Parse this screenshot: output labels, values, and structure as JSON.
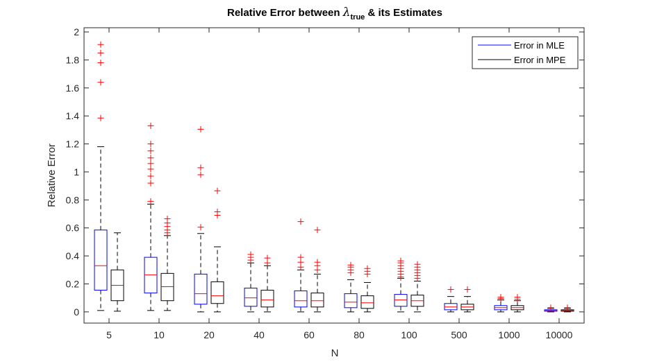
{
  "chart_data": {
    "type": "boxplot",
    "title": {
      "prefix": "Relative Error between ",
      "symbol": "λ",
      "subscript": "true",
      "suffix": " & its Estimates"
    },
    "xlabel": "N",
    "ylabel": "Relative Error",
    "ylim": [
      -0.08,
      2.03
    ],
    "yticks": [
      0,
      0.2,
      0.4,
      0.6,
      0.8,
      1,
      1.2,
      1.4,
      1.6,
      1.8,
      2
    ],
    "ytick_labels": [
      "0",
      "0.2",
      "0.4",
      "0.6",
      "0.8",
      "1",
      "1.2",
      "1.4",
      "1.6",
      "1.8",
      "2"
    ],
    "categories": [
      "5",
      "10",
      "20",
      "40",
      "60",
      "80",
      "100",
      "500",
      "1000",
      "10000"
    ],
    "legend": {
      "position": "top-right"
    },
    "median_color": "#ff0000",
    "outlier_color": "#ff0000",
    "series": [
      {
        "name": "Error in MLE",
        "color": "#0000ff",
        "boxes": [
          {
            "whisker_low": 0.01,
            "q1": 0.155,
            "median": 0.33,
            "q3": 0.585,
            "whisker_high": 1.18,
            "outliers": [
              1.385,
              1.64,
              1.78,
              1.85,
              1.91
            ]
          },
          {
            "whisker_low": 0.01,
            "q1": 0.135,
            "median": 0.265,
            "q3": 0.39,
            "whisker_high": 0.77,
            "outliers": [
              0.79,
              0.92,
              0.97,
              1.02,
              1.06,
              1.1,
              1.15,
              1.2,
              1.33
            ]
          },
          {
            "whisker_low": 0.0,
            "q1": 0.055,
            "median": 0.13,
            "q3": 0.27,
            "whisker_high": 0.56,
            "outliers": [
              0.605,
              0.98,
              1.03,
              1.305
            ]
          },
          {
            "whisker_low": 0.0,
            "q1": 0.04,
            "median": 0.1,
            "q3": 0.17,
            "whisker_high": 0.35,
            "outliers": [
              0.37,
              0.39,
              0.41
            ]
          },
          {
            "whisker_low": 0.0,
            "q1": 0.035,
            "median": 0.08,
            "q3": 0.15,
            "whisker_high": 0.3,
            "outliers": [
              0.32,
              0.355,
              0.39,
              0.645
            ]
          },
          {
            "whisker_low": 0.0,
            "q1": 0.03,
            "median": 0.07,
            "q3": 0.13,
            "whisker_high": 0.23,
            "outliers": [
              0.28,
              0.3,
              0.32,
              0.335
            ]
          },
          {
            "whisker_low": 0.0,
            "q1": 0.04,
            "median": 0.085,
            "q3": 0.125,
            "whisker_high": 0.24,
            "outliers": [
              0.25,
              0.27,
              0.29,
              0.31,
              0.33,
              0.35,
              0.365
            ]
          },
          {
            "whisker_low": 0.0,
            "q1": 0.015,
            "median": 0.035,
            "q3": 0.06,
            "whisker_high": 0.11,
            "outliers": [
              0.16
            ]
          },
          {
            "whisker_low": 0.0,
            "q1": 0.015,
            "median": 0.03,
            "q3": 0.045,
            "whisker_high": 0.085,
            "outliers": [
              0.095,
              0.105
            ]
          },
          {
            "whisker_low": 0.0,
            "q1": 0.005,
            "median": 0.01,
            "q3": 0.015,
            "whisker_high": 0.025,
            "outliers": [
              0.03
            ]
          }
        ]
      },
      {
        "name": "Error in MPE",
        "color": "#000000",
        "boxes": [
          {
            "whisker_low": 0.005,
            "q1": 0.08,
            "median": 0.19,
            "q3": 0.3,
            "whisker_high": 0.565,
            "outliers": []
          },
          {
            "whisker_low": 0.01,
            "q1": 0.08,
            "median": 0.18,
            "q3": 0.275,
            "whisker_high": 0.545,
            "outliers": [
              0.565,
              0.585,
              0.61,
              0.635,
              0.665
            ]
          },
          {
            "whisker_low": 0.0,
            "q1": 0.06,
            "median": 0.115,
            "q3": 0.215,
            "whisker_high": 0.465,
            "outliers": [
              0.69,
              0.715,
              0.865
            ]
          },
          {
            "whisker_low": 0.0,
            "q1": 0.035,
            "median": 0.085,
            "q3": 0.155,
            "whisker_high": 0.33,
            "outliers": [
              0.35,
              0.385
            ]
          },
          {
            "whisker_low": 0.0,
            "q1": 0.035,
            "median": 0.08,
            "q3": 0.135,
            "whisker_high": 0.27,
            "outliers": [
              0.3,
              0.33,
              0.355,
              0.585
            ]
          },
          {
            "whisker_low": 0.0,
            "q1": 0.025,
            "median": 0.065,
            "q3": 0.115,
            "whisker_high": 0.21,
            "outliers": [
              0.27,
              0.29,
              0.31
            ]
          },
          {
            "whisker_low": 0.0,
            "q1": 0.04,
            "median": 0.08,
            "q3": 0.12,
            "whisker_high": 0.22,
            "outliers": [
              0.24,
              0.26,
              0.28,
              0.3,
              0.32,
              0.34
            ]
          },
          {
            "whisker_low": 0.0,
            "q1": 0.015,
            "median": 0.035,
            "q3": 0.055,
            "whisker_high": 0.11,
            "outliers": [
              0.16
            ]
          },
          {
            "whisker_low": 0.0,
            "q1": 0.015,
            "median": 0.03,
            "q3": 0.045,
            "whisker_high": 0.08,
            "outliers": [
              0.09,
              0.105
            ]
          },
          {
            "whisker_low": 0.0,
            "q1": 0.005,
            "median": 0.01,
            "q3": 0.015,
            "whisker_high": 0.025,
            "outliers": [
              0.03
            ]
          }
        ]
      }
    ]
  }
}
